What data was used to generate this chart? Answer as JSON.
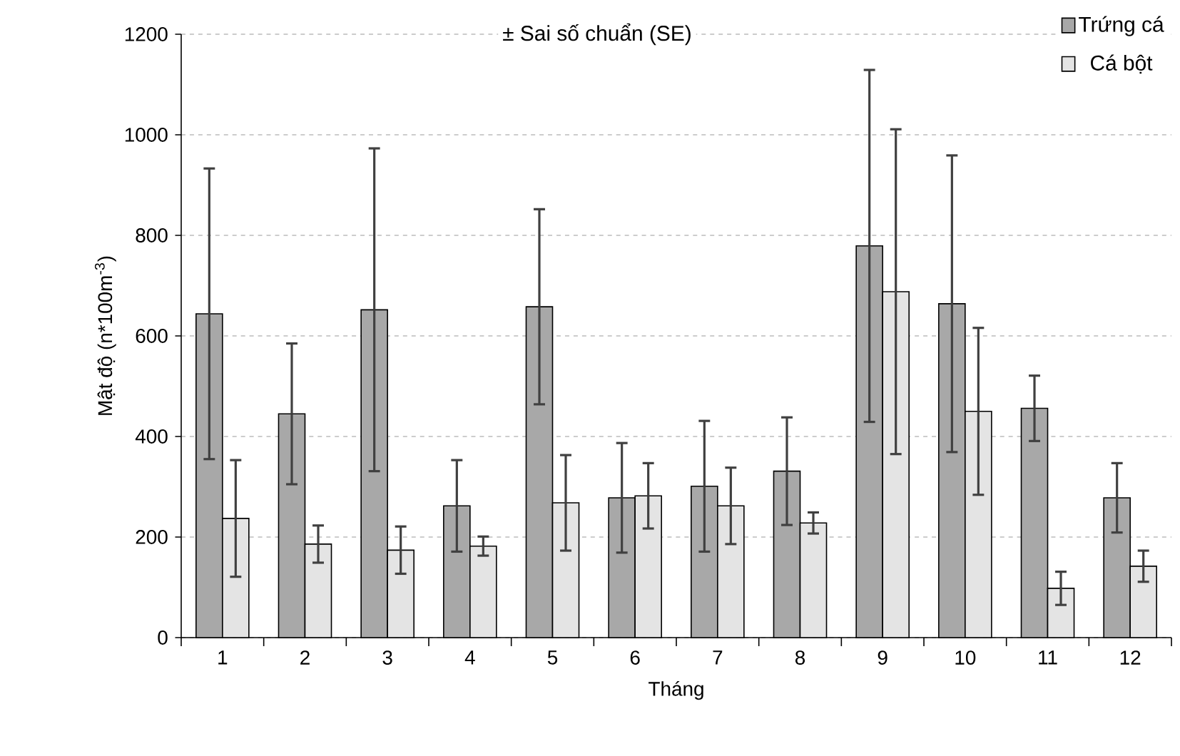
{
  "chart_data": {
    "type": "bar",
    "xlabel": "Tháng",
    "ylabel": "Mật độ (n*100m$^{-3}$)",
    "annotations": [
      "± Sai số chuẩn (SE)"
    ],
    "categories": [
      "1",
      "2",
      "3",
      "4",
      "5",
      "6",
      "7",
      "8",
      "9",
      "10",
      "11",
      "12"
    ],
    "series": [
      {
        "name": "Trứng cá",
        "color": "#a8a8a8",
        "values": [
          644,
          445,
          652,
          262,
          658,
          278,
          301,
          331,
          779,
          664,
          456,
          278
        ],
        "errors": [
          289,
          140,
          321,
          91,
          194,
          109,
          130,
          107,
          350,
          295,
          65,
          69
        ]
      },
      {
        "name": "Cá bột",
        "color": "#e4e4e4",
        "values": [
          237,
          186,
          174,
          182,
          268,
          282,
          262,
          228,
          688,
          450,
          98,
          142
        ],
        "errors": [
          116,
          37,
          47,
          19,
          95,
          65,
          76,
          21,
          323,
          166,
          33,
          31
        ]
      }
    ],
    "ylim": [
      0,
      1200
    ],
    "yticks": [
      0,
      200,
      400,
      600,
      800,
      1000,
      1200
    ],
    "grid": "y",
    "legend": "top right"
  }
}
